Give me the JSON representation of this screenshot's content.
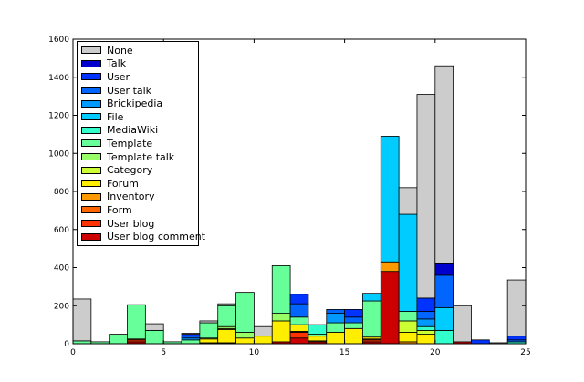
{
  "chart_data": {
    "type": "bar",
    "stacked": true,
    "title": "",
    "xlabel": "",
    "ylabel": "",
    "xlim": [
      0,
      25
    ],
    "ylim": [
      0,
      1600
    ],
    "x_ticks": [
      0,
      5,
      10,
      15,
      20,
      25
    ],
    "y_ticks": [
      0,
      200,
      400,
      600,
      800,
      1000,
      1200,
      1400,
      1600
    ],
    "grid": false,
    "legend_position": "top-left",
    "bin_width": 1,
    "x": [
      0,
      1,
      2,
      3,
      4,
      5,
      6,
      7,
      8,
      9,
      10,
      11,
      12,
      13,
      14,
      15,
      16,
      17,
      18,
      19,
      20,
      21,
      22,
      23,
      24
    ],
    "series": [
      {
        "name": "User blog comment",
        "color": "#cc0000",
        "values": [
          0,
          0,
          0,
          10,
          0,
          0,
          0,
          0,
          0,
          0,
          0,
          10,
          30,
          10,
          0,
          0,
          10,
          380,
          0,
          0,
          0,
          10,
          0,
          0,
          0
        ]
      },
      {
        "name": "User blog",
        "color": "#ff3300",
        "values": [
          0,
          0,
          0,
          10,
          0,
          0,
          0,
          0,
          0,
          0,
          0,
          0,
          30,
          0,
          0,
          0,
          10,
          0,
          0,
          0,
          0,
          0,
          0,
          0,
          0
        ]
      },
      {
        "name": "Form",
        "color": "#ff6600",
        "values": [
          0,
          0,
          0,
          5,
          0,
          0,
          0,
          0,
          5,
          0,
          0,
          0,
          5,
          0,
          0,
          0,
          5,
          0,
          0,
          0,
          0,
          0,
          0,
          0,
          0
        ]
      },
      {
        "name": "Inventory",
        "color": "#ff9900",
        "values": [
          0,
          0,
          0,
          0,
          0,
          0,
          0,
          5,
          0,
          0,
          0,
          0,
          0,
          5,
          0,
          0,
          0,
          50,
          10,
          0,
          0,
          0,
          0,
          0,
          0
        ]
      },
      {
        "name": "Forum",
        "color": "#ffee00",
        "values": [
          0,
          0,
          0,
          0,
          0,
          0,
          0,
          20,
          70,
          30,
          40,
          110,
          35,
          25,
          60,
          80,
          10,
          0,
          50,
          50,
          0,
          0,
          0,
          0,
          0
        ]
      },
      {
        "name": "Category",
        "color": "#ccff33",
        "values": [
          0,
          0,
          0,
          0,
          0,
          0,
          0,
          5,
          5,
          0,
          0,
          0,
          0,
          0,
          0,
          0,
          0,
          0,
          60,
          20,
          0,
          0,
          0,
          0,
          0
        ]
      },
      {
        "name": "Template talk",
        "color": "#99ff66",
        "values": [
          0,
          0,
          0,
          0,
          0,
          0,
          0,
          0,
          10,
          30,
          0,
          40,
          0,
          0,
          0,
          0,
          0,
          0,
          0,
          0,
          0,
          0,
          0,
          0,
          0
        ]
      },
      {
        "name": "Template",
        "color": "#66ff99",
        "values": [
          15,
          10,
          50,
          180,
          70,
          10,
          20,
          80,
          110,
          210,
          0,
          250,
          40,
          10,
          50,
          30,
          190,
          0,
          50,
          0,
          0,
          0,
          0,
          0,
          0
        ]
      },
      {
        "name": "MediaWiki",
        "color": "#33ffcc",
        "values": [
          0,
          0,
          0,
          0,
          0,
          0,
          0,
          0,
          0,
          0,
          0,
          0,
          0,
          50,
          0,
          0,
          0,
          0,
          0,
          20,
          70,
          0,
          0,
          0,
          10
        ]
      },
      {
        "name": "File",
        "color": "#00ccff",
        "values": [
          0,
          0,
          0,
          0,
          0,
          0,
          0,
          0,
          0,
          0,
          0,
          0,
          0,
          0,
          0,
          0,
          40,
          660,
          510,
          0,
          120,
          0,
          0,
          0,
          0
        ]
      },
      {
        "name": "Brickipedia",
        "color": "#0099ff",
        "values": [
          0,
          0,
          0,
          0,
          0,
          0,
          10,
          0,
          0,
          0,
          0,
          0,
          0,
          0,
          50,
          0,
          0,
          0,
          0,
          40,
          0,
          0,
          0,
          0,
          0
        ]
      },
      {
        "name": "User talk",
        "color": "#0066ff",
        "values": [
          0,
          0,
          0,
          0,
          0,
          0,
          10,
          0,
          0,
          0,
          0,
          0,
          70,
          0,
          20,
          30,
          0,
          0,
          0,
          40,
          170,
          0,
          0,
          0,
          10
        ]
      },
      {
        "name": "User",
        "color": "#0033ff",
        "values": [
          0,
          0,
          0,
          0,
          0,
          0,
          10,
          0,
          0,
          0,
          0,
          0,
          50,
          0,
          0,
          40,
          0,
          0,
          0,
          70,
          0,
          0,
          20,
          0,
          20
        ]
      },
      {
        "name": "Talk",
        "color": "#0000cc",
        "values": [
          0,
          0,
          0,
          0,
          0,
          0,
          0,
          0,
          0,
          0,
          0,
          0,
          0,
          0,
          0,
          0,
          0,
          0,
          0,
          0,
          60,
          0,
          0,
          0,
          0
        ]
      },
      {
        "name": "None",
        "color": "#cccccc",
        "values": [
          220,
          0,
          0,
          0,
          35,
          0,
          5,
          10,
          10,
          0,
          50,
          0,
          0,
          0,
          0,
          0,
          0,
          0,
          140,
          1070,
          1040,
          190,
          0,
          5,
          295
        ]
      }
    ],
    "legend_order": [
      "None",
      "Talk",
      "User",
      "User talk",
      "Brickipedia",
      "File",
      "MediaWiki",
      "Template",
      "Template talk",
      "Category",
      "Forum",
      "Inventory",
      "Form",
      "User blog",
      "User blog comment"
    ]
  }
}
